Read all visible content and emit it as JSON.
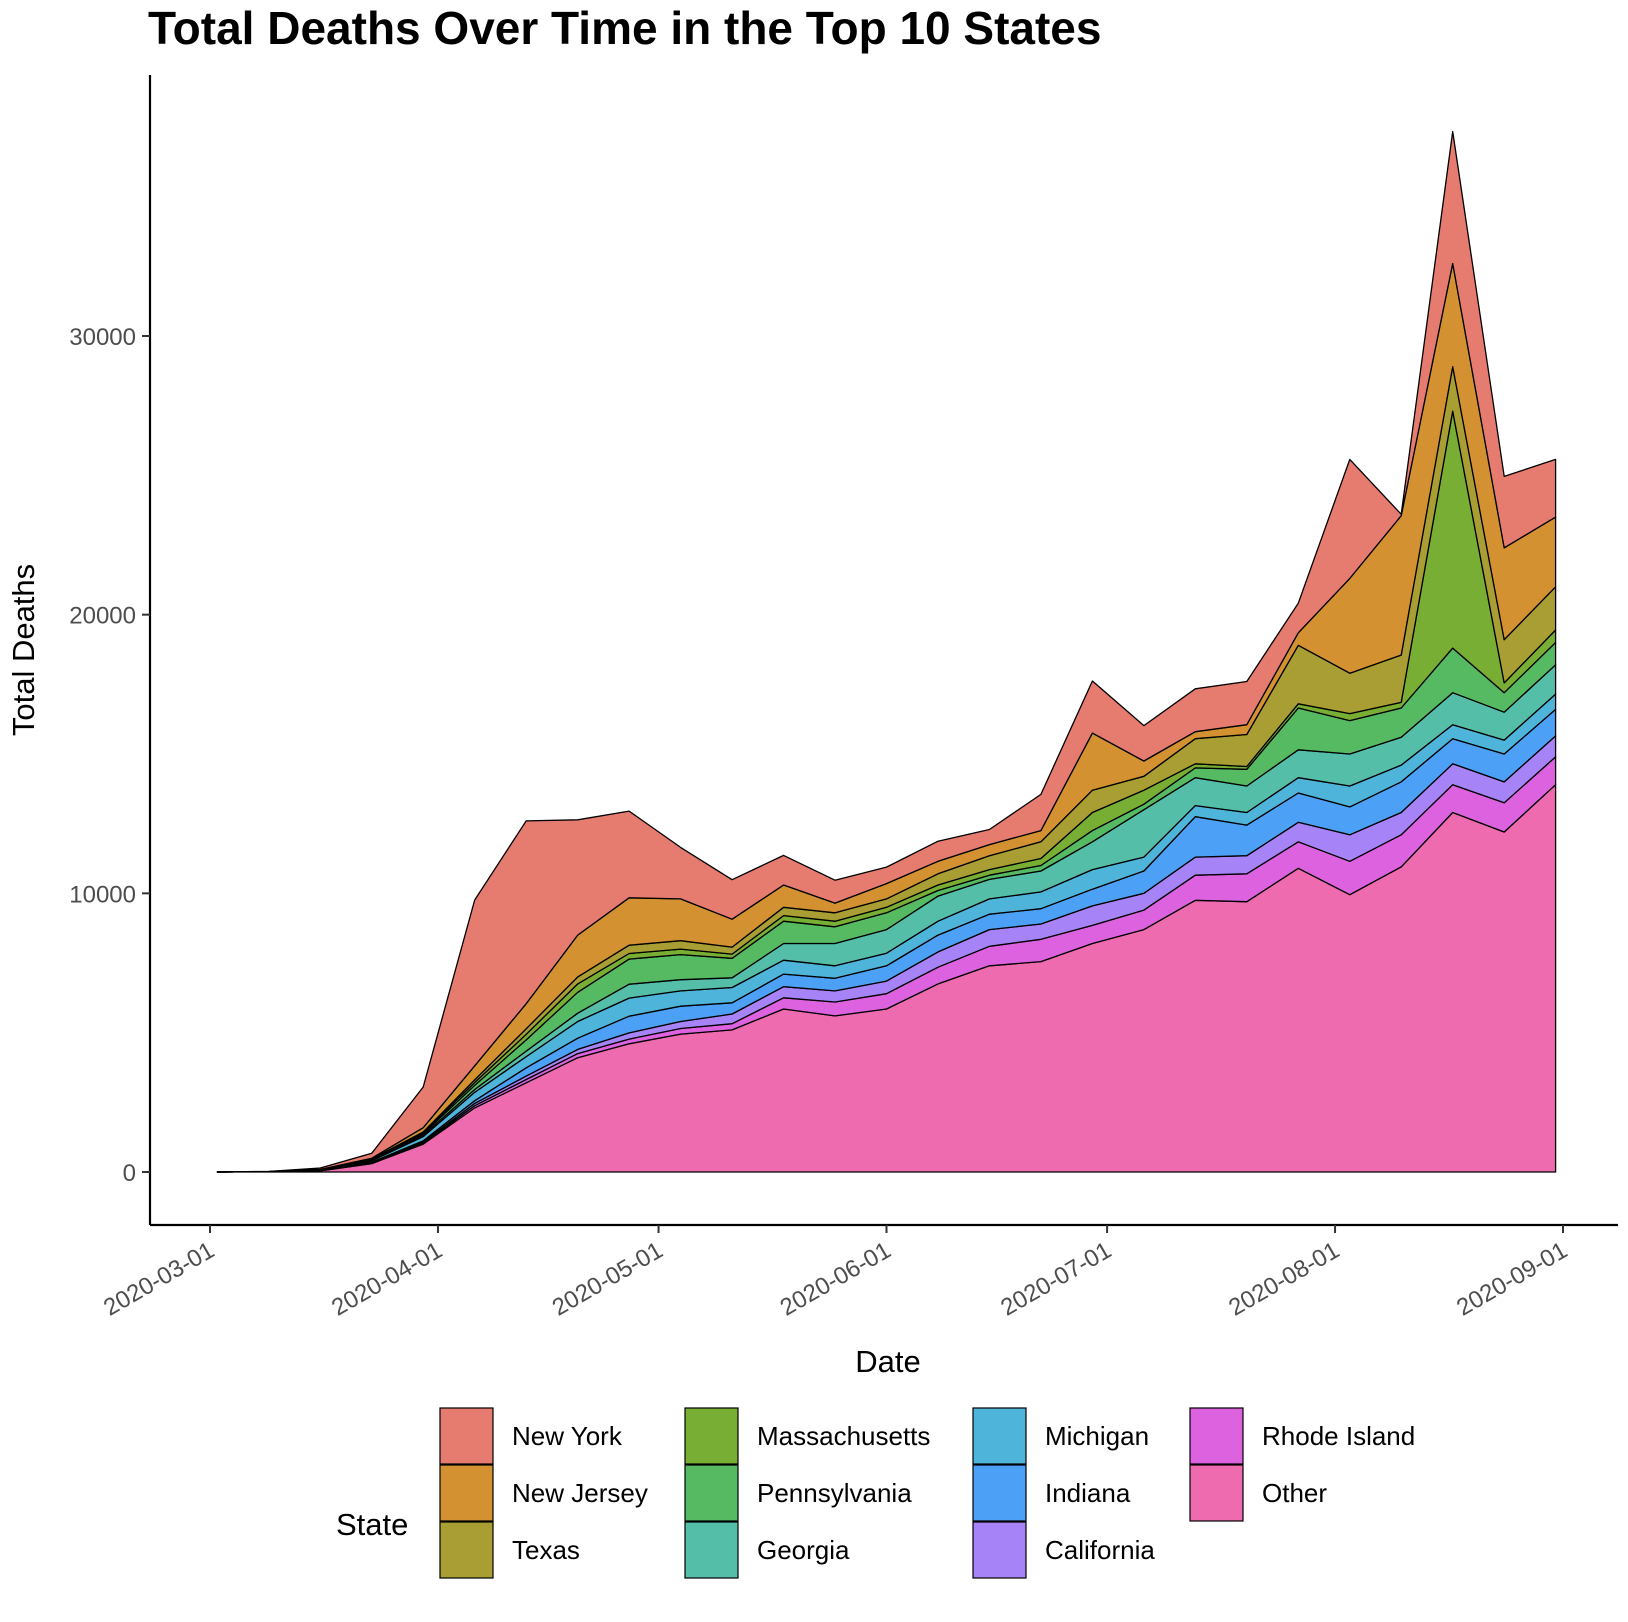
{
  "chart_data": {
    "type": "area",
    "stacked": true,
    "title": "Total Deaths Over Time in the Top 10 States",
    "xlabel": "Date",
    "ylabel": "Total Deaths",
    "xlim": [
      "2020-03-01",
      "2020-09-01"
    ],
    "ylim": [
      -2000,
      38500
    ],
    "x_ticks": [
      "2020-03-01",
      "2020-04-01",
      "2020-05-01",
      "2020-06-01",
      "2020-07-01",
      "2020-08-01",
      "2020-09-01"
    ],
    "y_ticks": [
      0,
      10000,
      20000,
      30000
    ],
    "grid": false,
    "legend": {
      "title": "State",
      "position": "bottom"
    },
    "x": [
      "2020-03-02",
      "2020-03-09",
      "2020-03-16",
      "2020-03-23",
      "2020-03-30",
      "2020-04-06",
      "2020-04-13",
      "2020-04-20",
      "2020-04-27",
      "2020-05-04",
      "2020-05-11",
      "2020-05-18",
      "2020-05-25",
      "2020-06-01",
      "2020-06-08",
      "2020-06-15",
      "2020-06-22",
      "2020-06-29",
      "2020-07-06",
      "2020-07-13",
      "2020-07-20",
      "2020-07-27",
      "2020-08-03",
      "2020-08-10",
      "2020-08-17",
      "2020-08-24",
      "2020-08-31"
    ],
    "series": [
      {
        "name": "Other",
        "color": "#EE6BAF",
        "values": [
          0,
          10,
          40,
          300,
          1000,
          2300,
          3200,
          4100,
          4600,
          4950,
          5100,
          5850,
          5600,
          5850,
          6750,
          7400,
          7550,
          8200,
          8700,
          9750,
          9700,
          10900,
          9950,
          10950,
          12900,
          12200,
          13900
        ]
      },
      {
        "name": "Rhode Island",
        "color": "#DD62E0",
        "values": [
          0,
          0,
          5,
          20,
          40,
          80,
          120,
          150,
          170,
          200,
          220,
          400,
          500,
          550,
          600,
          700,
          800,
          650,
          700,
          900,
          1000,
          950,
          1200,
          1150,
          1000,
          1050,
          1000
        ]
      },
      {
        "name": "California",
        "color": "#A683F7",
        "values": [
          0,
          0,
          5,
          15,
          30,
          80,
          120,
          150,
          220,
          250,
          350,
          400,
          400,
          450,
          550,
          600,
          550,
          700,
          600,
          650,
          650,
          700,
          950,
          800,
          750,
          750,
          750
        ]
      },
      {
        "name": "Indiana",
        "color": "#4CA1F6",
        "values": [
          0,
          0,
          5,
          20,
          50,
          100,
          300,
          400,
          600,
          550,
          400,
          450,
          450,
          550,
          600,
          550,
          550,
          600,
          800,
          1450,
          1100,
          1050,
          1000,
          1100,
          900,
          1000,
          950
        ]
      },
      {
        "name": "Michigan",
        "color": "#4FB4DA",
        "values": [
          0,
          0,
          10,
          50,
          150,
          300,
          400,
          600,
          650,
          550,
          550,
          500,
          450,
          450,
          500,
          550,
          600,
          700,
          500,
          400,
          450,
          550,
          750,
          600,
          500,
          500,
          550
        ]
      },
      {
        "name": "Georgia",
        "color": "#55BEA9",
        "values": [
          0,
          0,
          5,
          20,
          50,
          100,
          200,
          300,
          500,
          400,
          350,
          600,
          800,
          850,
          900,
          700,
          750,
          1000,
          1700,
          1000,
          950,
          1000,
          1150,
          1000,
          1150,
          1000,
          1050
        ]
      },
      {
        "name": "Pennsylvania",
        "color": "#56BA63",
        "values": [
          0,
          0,
          5,
          20,
          50,
          150,
          400,
          750,
          900,
          900,
          700,
          800,
          600,
          600,
          200,
          150,
          200,
          400,
          200,
          350,
          600,
          1500,
          1200,
          1050,
          1600,
          700,
          800
        ]
      },
      {
        "name": "Massachusetts",
        "color": "#78AE33",
        "values": [
          0,
          0,
          5,
          10,
          40,
          100,
          200,
          300,
          200,
          200,
          150,
          200,
          200,
          200,
          200,
          200,
          250,
          650,
          500,
          150,
          100,
          150,
          250,
          200,
          8500,
          350,
          450
        ]
      },
      {
        "name": "Texas",
        "color": "#A89E34",
        "values": [
          0,
          0,
          5,
          10,
          30,
          100,
          200,
          250,
          300,
          300,
          250,
          300,
          300,
          300,
          400,
          500,
          600,
          800,
          500,
          900,
          1150,
          2100,
          1450,
          1700,
          1600,
          1550,
          1550
        ]
      },
      {
        "name": "New Jersey",
        "color": "#D39131",
        "values": [
          0,
          0,
          10,
          30,
          150,
          500,
          900,
          1500,
          1700,
          1500,
          1000,
          800,
          350,
          550,
          450,
          400,
          400,
          2050,
          550,
          250,
          350,
          450,
          3400,
          5000,
          3700,
          3300,
          2500
        ]
      },
      {
        "name": "New York",
        "color": "#E67B70",
        "values": [
          0,
          10,
          50,
          180,
          1460,
          5950,
          6560,
          4140,
          3110,
          1850,
          1420,
          1060,
          820,
          590,
          720,
          540,
          1300,
          1870,
          1270,
          1540,
          1550,
          1060,
          4270,
          50,
          4740,
          2560,
          2070
        ]
      }
    ]
  }
}
